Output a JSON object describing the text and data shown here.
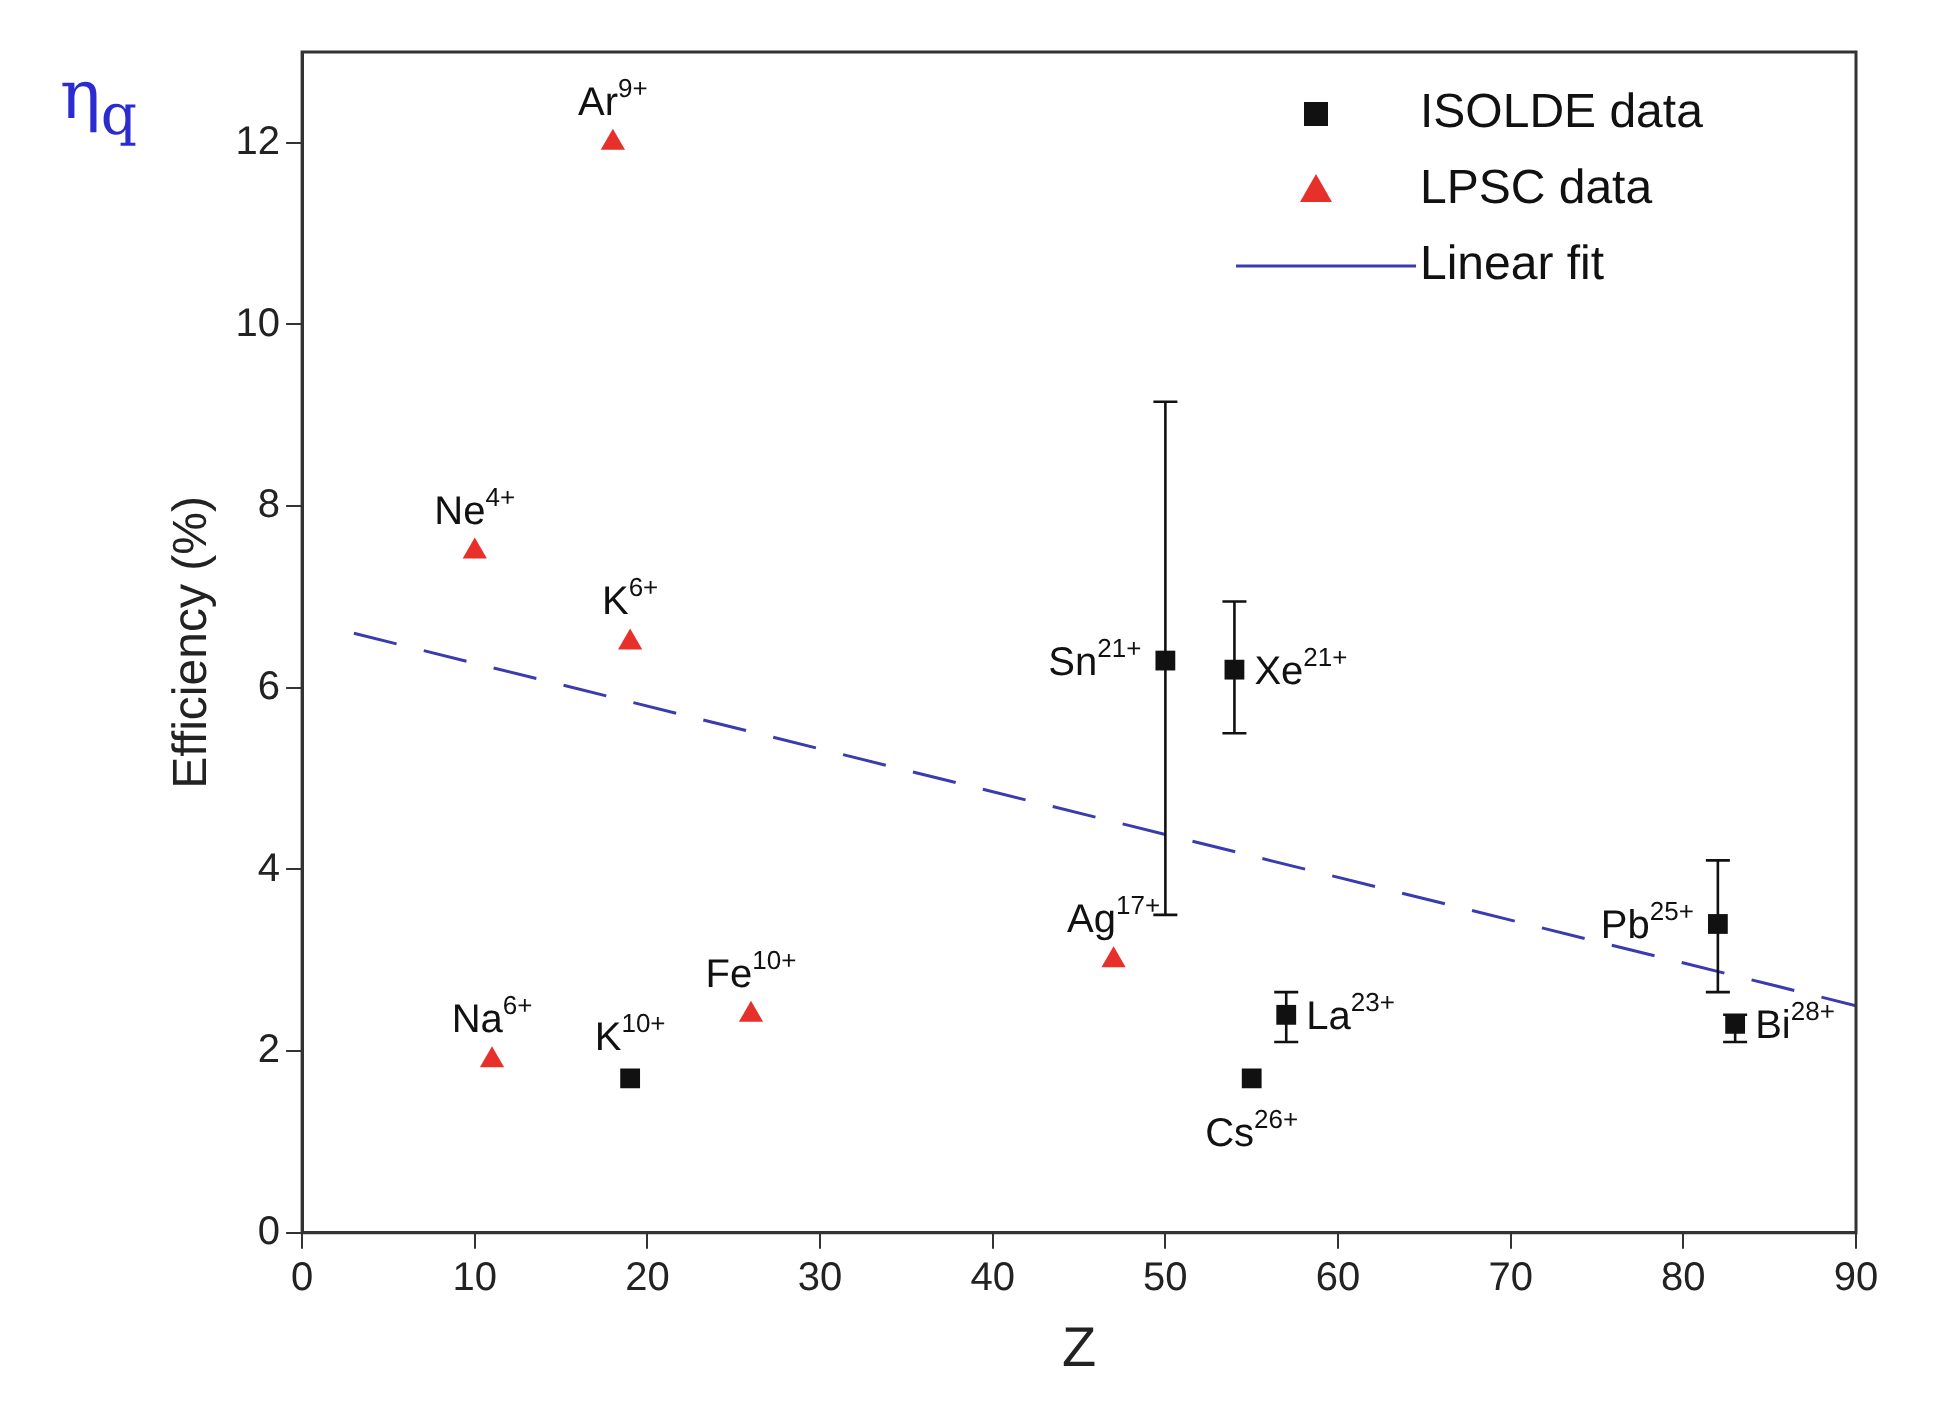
{
  "chart_data": {
    "type": "scatter",
    "xlabel": "Z",
    "ylabel": "Efficiency (%)",
    "xlim": [
      0,
      90
    ],
    "xticks": [
      0,
      10,
      20,
      30,
      40,
      50,
      60,
      70,
      80,
      90
    ],
    "ylim": [
      0,
      13
    ],
    "yticks": [
      0,
      2,
      4,
      6,
      8,
      10,
      12
    ],
    "grid": false,
    "legend": "top right",
    "series": [
      {
        "name": "ISOLDE data",
        "type": "scatter",
        "marker": "square",
        "color": "#111111",
        "x": [
          19,
          50,
          54,
          57,
          55,
          82,
          83
        ],
        "values": [
          1.7,
          6.3,
          6.2,
          2.4,
          1.7,
          3.4,
          2.3
        ],
        "errors": [
          null,
          [
            3.5,
            9.15
          ],
          [
            5.5,
            6.95
          ],
          [
            2.1,
            2.65
          ],
          null,
          [
            2.65,
            4.1
          ],
          [
            2.1,
            2.4
          ]
        ]
      },
      {
        "name": "LPSC data",
        "type": "scatter",
        "marker": "triangle",
        "color": "#e8302a",
        "x": [
          18,
          10,
          19,
          11,
          26,
          47
        ],
        "values": [
          12.0,
          7.5,
          6.5,
          1.9,
          2.4,
          3.0
        ]
      },
      {
        "name": "Linear fit",
        "type": "line",
        "marker": "none",
        "line_style": "dashed",
        "color": "#3b3bb0",
        "x": [
          3,
          90
        ],
        "values": [
          6.6,
          2.5
        ]
      }
    ],
    "annotations": [
      {
        "text": "K$^{10+}$",
        "x": 19,
        "y": 1.7
      },
      {
        "text": "Sn$^{21+}$",
        "x": 50,
        "y": 6.3
      },
      {
        "text": "Xe$^{21+}$",
        "x": 54,
        "y": 6.2
      },
      {
        "text": "La$^{23+}$",
        "x": 57,
        "y": 2.4
      },
      {
        "text": "Cs$^{26+}$",
        "x": 55,
        "y": 1.7
      },
      {
        "text": "Pb$^{25+}$",
        "x": 82,
        "y": 3.4
      },
      {
        "text": "Bi$^{28+}$",
        "x": 83,
        "y": 2.3
      },
      {
        "text": "Ar$^{9+}$",
        "x": 18,
        "y": 12.0
      },
      {
        "text": "Ne$^{4+}$",
        "x": 10,
        "y": 7.5
      },
      {
        "text": "K$^{6+}$",
        "x": 19,
        "y": 6.5
      },
      {
        "text": "Na$^{6+}$",
        "x": 11,
        "y": 1.9
      },
      {
        "text": "Fe$^{10+}$",
        "x": 26,
        "y": 2.4
      },
      {
        "text": "Ag$^{17+}$",
        "x": 47,
        "y": 3.0
      },
      "η$_{q}$"
    ]
  }
}
